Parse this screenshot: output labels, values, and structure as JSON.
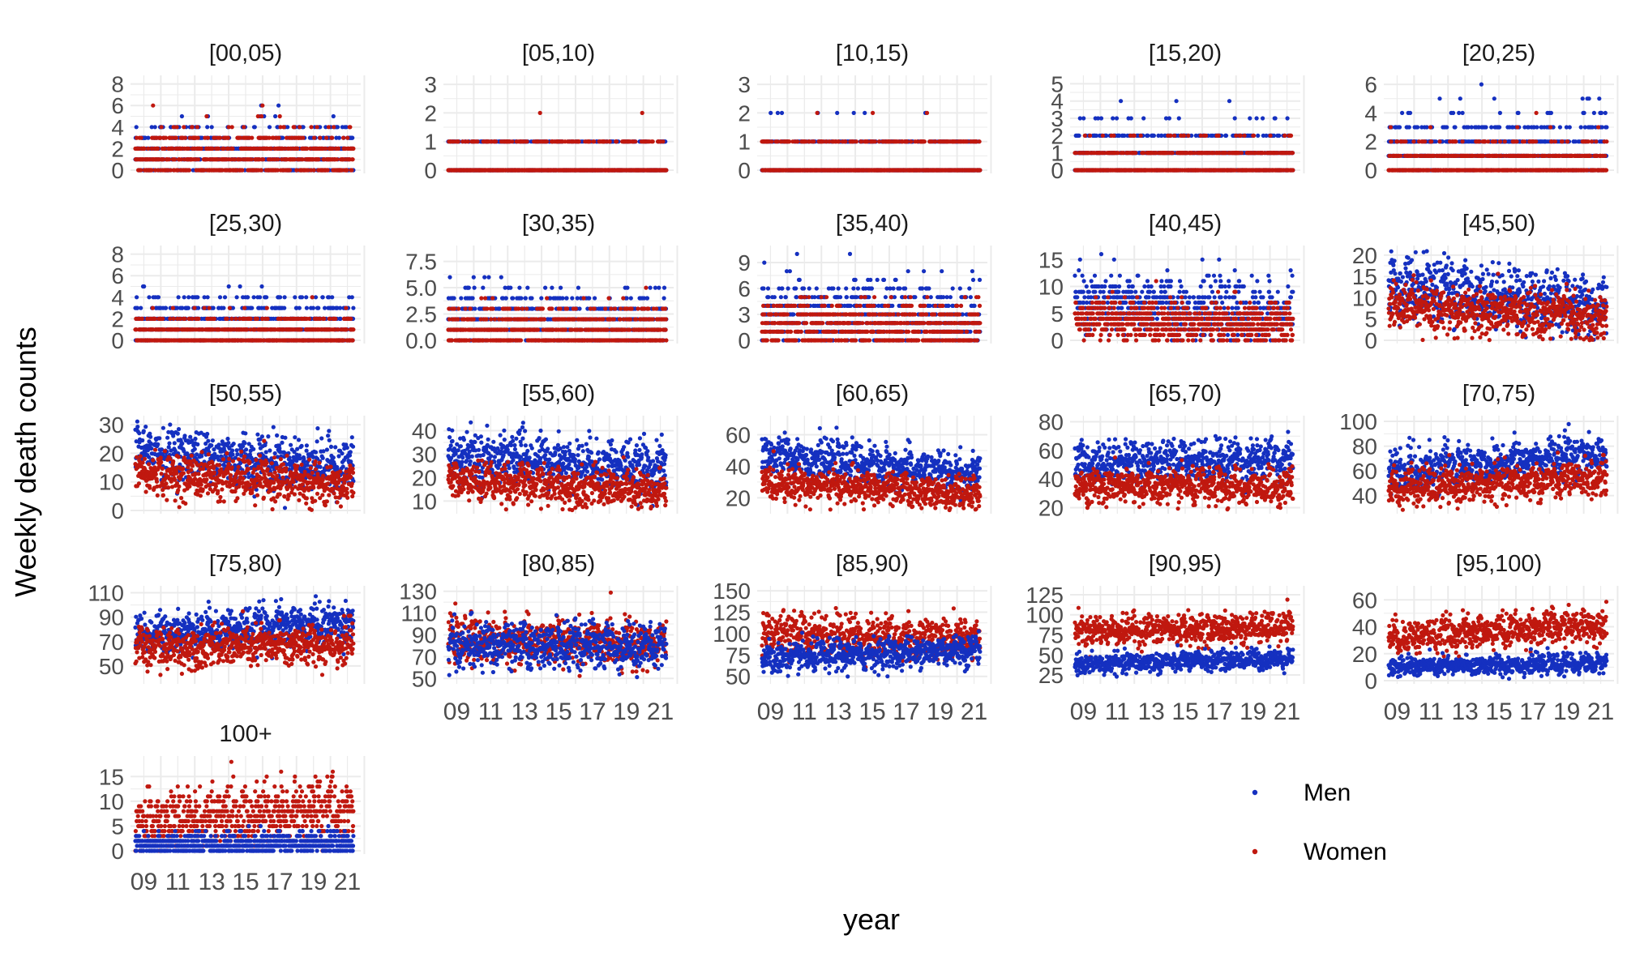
{
  "chart_data": {
    "type": "scatter",
    "xlabel": "year",
    "ylabel": "Weekly death counts",
    "x_tick_labels": [
      "09",
      "11",
      "13",
      "15",
      "17",
      "19",
      "21"
    ],
    "x_range": [
      2009,
      2022
    ],
    "legend": {
      "placement": "bottom-right",
      "entries": [
        {
          "name": "Men",
          "color": "#1530C0"
        },
        {
          "name": "Women",
          "color": "#C0180F"
        }
      ]
    },
    "grid": true,
    "panels": [
      {
        "title": "[00,05)",
        "yticks": [
          "0",
          "2",
          "4",
          "6",
          "8"
        ],
        "ylim": [
          0,
          8.5
        ],
        "men": {
          "start": 1.4,
          "end": 1.3,
          "spread": 1.5
        },
        "women": {
          "start": 1.2,
          "end": 1.1,
          "spread": 1.4
        },
        "discrete": true
      },
      {
        "title": "[05,10)",
        "yticks": [
          "0",
          "1",
          "2",
          "3"
        ],
        "ylim": [
          0,
          3.2
        ],
        "men": {
          "start": 0.15,
          "end": 0.15,
          "spread": 0.5
        },
        "women": {
          "start": 0.12,
          "end": 0.12,
          "spread": 0.45
        },
        "discrete": true
      },
      {
        "title": "[10,15)",
        "yticks": [
          "0",
          "1",
          "2",
          "3"
        ],
        "ylim": [
          0,
          3.2
        ],
        "men": {
          "start": 0.2,
          "end": 0.2,
          "spread": 0.55
        },
        "women": {
          "start": 0.15,
          "end": 0.15,
          "spread": 0.5
        },
        "discrete": true
      },
      {
        "title": "[15,20)",
        "yticks": [
          "0",
          "1",
          "2",
          "3",
          "4",
          "5"
        ],
        "ylim": [
          0,
          5.3
        ],
        "men": {
          "start": 0.7,
          "end": 0.6,
          "spread": 1.0
        },
        "women": {
          "start": 0.3,
          "end": 0.3,
          "spread": 0.7
        },
        "discrete": true
      },
      {
        "title": "[20,25)",
        "yticks": [
          "0",
          "2",
          "4",
          "6"
        ],
        "ylim": [
          0,
          6.4
        ],
        "men": {
          "start": 1.3,
          "end": 1.1,
          "spread": 1.3
        },
        "women": {
          "start": 0.5,
          "end": 0.4,
          "spread": 0.8
        },
        "discrete": true
      },
      {
        "title": "[25,30)",
        "yticks": [
          "0",
          "2",
          "4",
          "6",
          "8"
        ],
        "ylim": [
          0,
          8.5
        ],
        "men": {
          "start": 1.4,
          "end": 1.5,
          "spread": 1.3
        },
        "women": {
          "start": 0.6,
          "end": 0.6,
          "spread": 0.9
        },
        "discrete": true
      },
      {
        "title": "[30,35)",
        "yticks": [
          "0.0",
          "2.5",
          "5.0",
          "7.5"
        ],
        "ylim": [
          0,
          8.7
        ],
        "men": {
          "start": 2.0,
          "end": 1.6,
          "spread": 1.5
        },
        "women": {
          "start": 1.0,
          "end": 0.9,
          "spread": 1.1
        },
        "discrete": true
      },
      {
        "title": "[35,40)",
        "yticks": [
          "0",
          "3",
          "6",
          "9"
        ],
        "ylim": [
          0,
          10.6
        ],
        "men": {
          "start": 3.0,
          "end": 2.5,
          "spread": 2.0
        },
        "women": {
          "start": 1.8,
          "end": 1.5,
          "spread": 1.4
        },
        "discrete": true
      },
      {
        "title": "[40,45)",
        "yticks": [
          "0",
          "5",
          "10",
          "15"
        ],
        "ylim": [
          0,
          17
        ],
        "men": {
          "start": 7.0,
          "end": 4.5,
          "spread": 2.8
        },
        "women": {
          "start": 4.0,
          "end": 2.5,
          "spread": 2.0
        },
        "discrete": true
      },
      {
        "title": "[45,50)",
        "yticks": [
          "0",
          "5",
          "10",
          "15",
          "20"
        ],
        "ylim": [
          0,
          21.5
        ],
        "men": {
          "start": 13,
          "end": 8,
          "spread": 3.5
        },
        "women": {
          "start": 8,
          "end": 5,
          "spread": 2.7
        },
        "discrete": false
      },
      {
        "title": "[50,55)",
        "yticks": [
          "0",
          "10",
          "20",
          "30"
        ],
        "ylim": [
          0,
          32
        ],
        "men": {
          "start": 21,
          "end": 15,
          "spread": 4.5
        },
        "women": {
          "start": 13,
          "end": 9,
          "spread": 3.6
        },
        "discrete": false
      },
      {
        "title": "[55,60)",
        "yticks": [
          "10",
          "20",
          "30",
          "40"
        ],
        "ylim": [
          6,
          45
        ],
        "men": {
          "start": 30,
          "end": 24,
          "spread": 5
        },
        "women": {
          "start": 19,
          "end": 14,
          "spread": 4
        },
        "discrete": false
      },
      {
        "title": "[60,65)",
        "yticks": [
          "20",
          "40",
          "60"
        ],
        "ylim": [
          12,
          70
        ],
        "men": {
          "start": 48,
          "end": 34,
          "spread": 6
        },
        "women": {
          "start": 30,
          "end": 22,
          "spread": 5
        },
        "discrete": false
      },
      {
        "title": "[65,70)",
        "yticks": [
          "20",
          "40",
          "60",
          "80"
        ],
        "ylim": [
          18,
          82
        ],
        "men": {
          "start": 52,
          "end": 54,
          "spread": 7
        },
        "women": {
          "start": 35,
          "end": 34,
          "spread": 6
        },
        "discrete": false
      },
      {
        "title": "[70,75)",
        "yticks": [
          "40",
          "60",
          "80",
          "100"
        ],
        "ylim": [
          28,
          102
        ],
        "men": {
          "start": 60,
          "end": 74,
          "spread": 8
        },
        "women": {
          "start": 45,
          "end": 54,
          "spread": 7
        },
        "discrete": false
      },
      {
        "title": "[75,80)",
        "yticks": [
          "50",
          "70",
          "90",
          "110"
        ],
        "ylim": [
          38,
          113
        ],
        "men": {
          "start": 76,
          "end": 86,
          "spread": 8
        },
        "women": {
          "start": 64,
          "end": 68,
          "spread": 8
        },
        "discrete": false
      },
      {
        "title": "[80,85)",
        "yticks": [
          "50",
          "70",
          "90",
          "110",
          "130"
        ],
        "ylim": [
          48,
          132
        ],
        "men": {
          "start": 80,
          "end": 80,
          "spread": 10
        },
        "women": {
          "start": 85,
          "end": 82,
          "spread": 10
        },
        "discrete": false
      },
      {
        "title": "[85,90)",
        "yticks": [
          "50",
          "75",
          "100",
          "125",
          "150"
        ],
        "ylim": [
          45,
          152
        ],
        "men": {
          "start": 70,
          "end": 82,
          "spread": 9
        },
        "women": {
          "start": 102,
          "end": 92,
          "spread": 12
        },
        "discrete": false
      },
      {
        "title": "[90,95)",
        "yticks": [
          "25",
          "50",
          "75",
          "100",
          "125"
        ],
        "ylim": [
          18,
          132
        ],
        "men": {
          "start": 38,
          "end": 46,
          "spread": 6
        },
        "women": {
          "start": 80,
          "end": 84,
          "spread": 9
        },
        "discrete": false
      },
      {
        "title": "[95,100)",
        "yticks": [
          "0",
          "20",
          "40",
          "60"
        ],
        "ylim": [
          0,
          68
        ],
        "men": {
          "start": 10,
          "end": 13,
          "spread": 3.5
        },
        "women": {
          "start": 32,
          "end": 42,
          "spread": 6
        },
        "discrete": false
      },
      {
        "title": "100+",
        "yticks": [
          "0",
          "5",
          "10",
          "15"
        ],
        "ylim": [
          0,
          18.5
        ],
        "men": {
          "start": 1.2,
          "end": 1.5,
          "spread": 1.2
        },
        "women": {
          "start": 5.5,
          "end": 8.5,
          "spread": 3.0
        },
        "discrete": true
      }
    ]
  }
}
